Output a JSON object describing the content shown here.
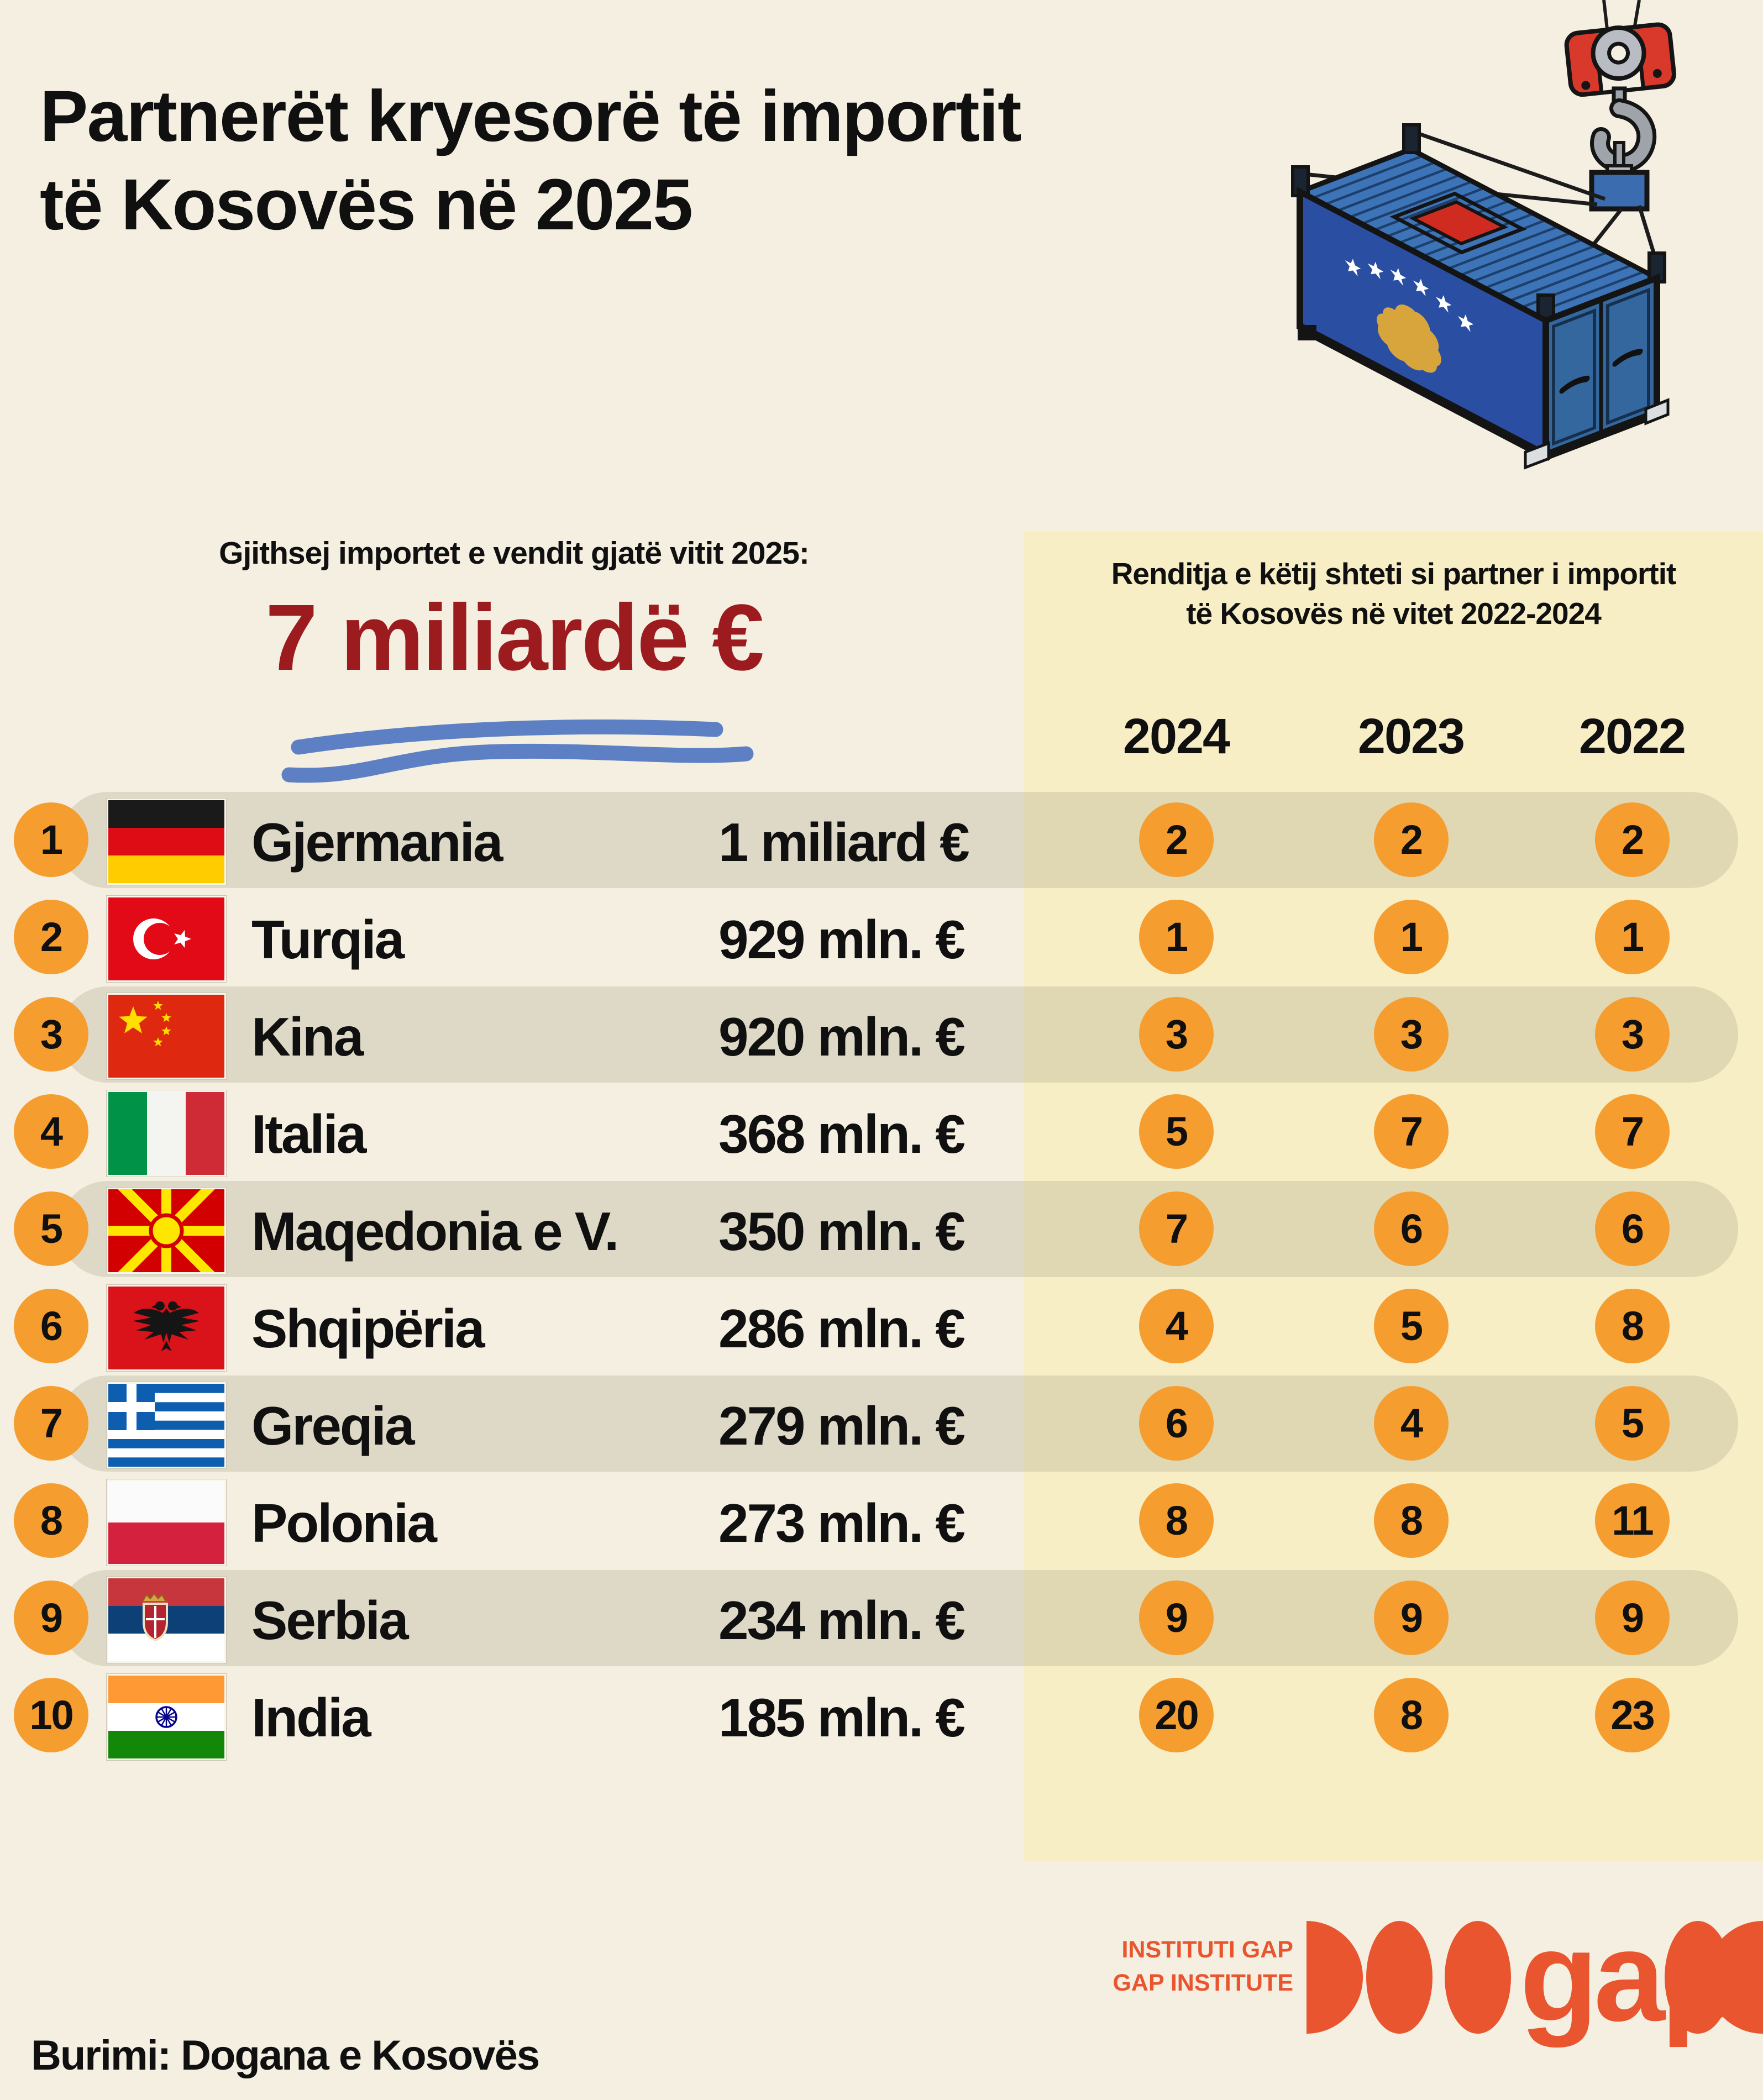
{
  "title": {
    "line1": "Partnerët kryesorë të importit",
    "line2": "të Kosovës në 2025"
  },
  "totals": {
    "heading": "Gjithsej importet e vendit gjatë vitit 2025:",
    "value": "7 miliardë €"
  },
  "ranking_panel": {
    "heading_line1": "Renditja e këtij shteti si partner i importit",
    "heading_line2": "të Kosovës në vitet 2022-2024",
    "years": [
      "2024",
      "2023",
      "2022"
    ]
  },
  "countries": [
    {
      "rank": "1",
      "name": "Gjermania",
      "value": "1 miliard €",
      "flag": "germany",
      "year_ranks": [
        "2",
        "2",
        "2"
      ]
    },
    {
      "rank": "2",
      "name": "Turqia",
      "value": "929 mln. €",
      "flag": "turkey",
      "year_ranks": [
        "1",
        "1",
        "1"
      ]
    },
    {
      "rank": "3",
      "name": "Kina",
      "value": "920 mln. €",
      "flag": "china",
      "year_ranks": [
        "3",
        "3",
        "3"
      ]
    },
    {
      "rank": "4",
      "name": "Italia",
      "value": "368 mln. €",
      "flag": "italy",
      "year_ranks": [
        "5",
        "7",
        "7"
      ]
    },
    {
      "rank": "5",
      "name": "Maqedonia e V.",
      "value": "350 mln. €",
      "flag": "north-macedonia",
      "year_ranks": [
        "7",
        "6",
        "6"
      ]
    },
    {
      "rank": "6",
      "name": "Shqipëria",
      "value": "286 mln. €",
      "flag": "albania",
      "year_ranks": [
        "4",
        "5",
        "8"
      ]
    },
    {
      "rank": "7",
      "name": "Greqia",
      "value": "279 mln. €",
      "flag": "greece",
      "year_ranks": [
        "6",
        "4",
        "5"
      ]
    },
    {
      "rank": "8",
      "name": "Polonia",
      "value": "273 mln. €",
      "flag": "poland",
      "year_ranks": [
        "8",
        "8",
        "11"
      ]
    },
    {
      "rank": "9",
      "name": "Serbia",
      "value": "234 mln. €",
      "flag": "serbia",
      "year_ranks": [
        "9",
        "9",
        "9"
      ]
    },
    {
      "rank": "10",
      "name": "India",
      "value": "185 mln. €",
      "flag": "india",
      "year_ranks": [
        "20",
        "8",
        "23"
      ]
    }
  ],
  "source": "Burimi: Dogana e Kosovës",
  "logo": {
    "line1": "INSTITUTI GAP",
    "line2": "GAP INSTITUTE",
    "wordmark": "gap"
  },
  "colors": {
    "background": "#f4efe1",
    "panel_yellow": "#f7eec6",
    "row_stripe": "#e4dfd0",
    "badge_orange": "#f59d2f",
    "value_red": "#9b1b1e",
    "underline_blue": "#5d80c5",
    "logo_orange": "#e8552e"
  },
  "chart_data": {
    "type": "table",
    "title": "Partnerët kryesorë të importit të Kosovës në 2025",
    "total_imports_2025_eur": "7 miliardë €",
    "categories": [
      "Gjermania",
      "Turqia",
      "Kina",
      "Italia",
      "Maqedonia e V.",
      "Shqipëria",
      "Greqia",
      "Polonia",
      "Serbia",
      "India"
    ],
    "values_mln_eur_2025": [
      1000,
      929,
      920,
      368,
      350,
      286,
      279,
      273,
      234,
      185
    ],
    "series": [
      {
        "name": "Renditja 2024",
        "values": [
          2,
          1,
          3,
          5,
          7,
          4,
          6,
          8,
          9,
          20
        ]
      },
      {
        "name": "Renditja 2023",
        "values": [
          2,
          1,
          3,
          7,
          6,
          5,
          4,
          8,
          9,
          8
        ]
      },
      {
        "name": "Renditja 2022",
        "values": [
          2,
          1,
          3,
          7,
          6,
          8,
          5,
          11,
          9,
          23
        ]
      }
    ],
    "source": "Burimi: Dogana e Kosovës"
  }
}
